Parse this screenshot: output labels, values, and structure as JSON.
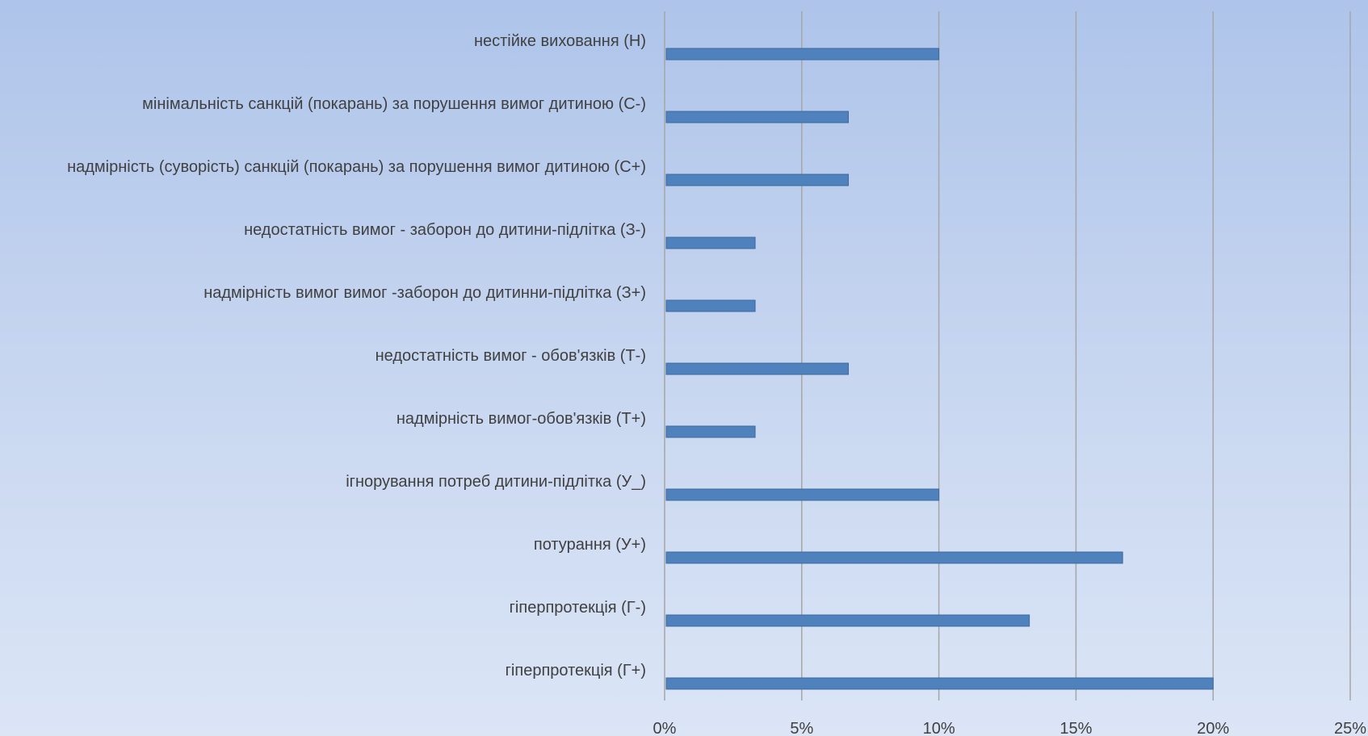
{
  "chart_data": {
    "type": "bar",
    "orientation": "horizontal",
    "title": "",
    "xlabel": "",
    "ylabel": "",
    "xlim": [
      0,
      25
    ],
    "x_tick_values": [
      0,
      5,
      10,
      15,
      20,
      25
    ],
    "x_tick_labels": [
      "0%",
      "5%",
      "10%",
      "15%",
      "20%",
      "25%"
    ],
    "grid": "vertical",
    "legend": "none",
    "bar_color": "#4f81bd",
    "categories": [
      "нестійке виховання (Н)",
      "мінімальність санкцій (покарань) за порушення вимог дитиною (С-)",
      "надмірність (суворість) санкцій (покарань) за порушення вимог дитиною (С+)",
      "недостатність вимог - заборон до дитини-підлітка (З-)",
      "надмірність вимог вимог -заборон до дитинни-підлітка (З+)",
      "недостатність вимог - обов'язків (Т-)",
      "надмірність вимог-обов'язків (Т+)",
      "ігнорування потреб дитини-підлітка (У_)",
      "потурання (У+)",
      "гіперпротекція (Г-)",
      "гіперпротекція (Г+)"
    ],
    "values": [
      10,
      6.7,
      6.7,
      3.3,
      3.3,
      6.7,
      3.3,
      10,
      16.7,
      13.3,
      20
    ]
  }
}
